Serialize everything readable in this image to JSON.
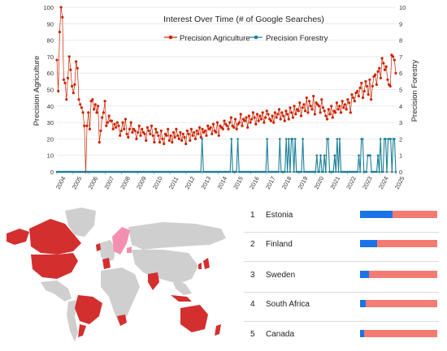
{
  "chart_data": {
    "type": "line",
    "title": "Interest Over Time (# of Google Searches)",
    "xlabel": "",
    "ylabel_left": "Precision Agriculture",
    "ylabel_right": "Precision Forestry",
    "xlim": [
      2004,
      2025
    ],
    "ylim_left": [
      0,
      100
    ],
    "ylim_right": [
      0,
      10
    ],
    "x_ticks": [
      "2004",
      "2005",
      "2006",
      "2007",
      "2008",
      "2009",
      "2010",
      "2011",
      "2012",
      "2013",
      "2014",
      "2015",
      "2016",
      "2017",
      "2018",
      "2019",
      "2020",
      "2021",
      "2022",
      "2023",
      "2024",
      "2025"
    ],
    "y_ticks_left": [
      "0",
      "10",
      "20",
      "30",
      "40",
      "50",
      "60",
      "70",
      "80",
      "90",
      "100"
    ],
    "y_ticks_right": [
      "0",
      "1",
      "2",
      "3",
      "4",
      "5",
      "6",
      "7",
      "8",
      "9",
      "10"
    ],
    "legend_position": "top-center",
    "grid": "horizontal",
    "series": [
      {
        "name": "Precision Agriculture",
        "axis": "left",
        "color": "#cc2200",
        "values": [
          68,
          49,
          85,
          100,
          94,
          56,
          54,
          44,
          57,
          70,
          62,
          52,
          48,
          53,
          67,
          63,
          44,
          41,
          39,
          36,
          28,
          0,
          28,
          36,
          26,
          43,
          44,
          38,
          41,
          36,
          40,
          18,
          25,
          33,
          36,
          43,
          28,
          30,
          34,
          31,
          31,
          26,
          29,
          27,
          30,
          28,
          22,
          25,
          30,
          26,
          32,
          23,
          21,
          26,
          30,
          24,
          26,
          25,
          20,
          24,
          28,
          22,
          26,
          24,
          23,
          19,
          27,
          25,
          23,
          28,
          22,
          18,
          26,
          24,
          22,
          18,
          25,
          20,
          17,
          23,
          22,
          26,
          19,
          22,
          18,
          24,
          21,
          26,
          22,
          20,
          24,
          19,
          23,
          21,
          17,
          25,
          23,
          19,
          26,
          22,
          24,
          20,
          25,
          23,
          27,
          21,
          26,
          24,
          25,
          22,
          28,
          26,
          27,
          23,
          29,
          25,
          24,
          30,
          22,
          28,
          27,
          26,
          31,
          29,
          28,
          26,
          30,
          33,
          28,
          27,
          32,
          26,
          29,
          30,
          35,
          28,
          32,
          31,
          33,
          27,
          34,
          30,
          32,
          36,
          33,
          29,
          35,
          31,
          34,
          32,
          36,
          30,
          33,
          37,
          35,
          32,
          31,
          34,
          30,
          36,
          33,
          35,
          38,
          32,
          36,
          34,
          31,
          37,
          35,
          32,
          39,
          36,
          33,
          40,
          35,
          38,
          37,
          42,
          34,
          39,
          41,
          37,
          45,
          36,
          43,
          40,
          38,
          46,
          35,
          42,
          41,
          40,
          36,
          44,
          39,
          37,
          34,
          32,
          38,
          35,
          40,
          33,
          37,
          36,
          42,
          38,
          40,
          36,
          43,
          39,
          41,
          38,
          44,
          42,
          36,
          47,
          45,
          43,
          48,
          49,
          46,
          51,
          54,
          45,
          49,
          55,
          52,
          47,
          56,
          44,
          52,
          58,
          59,
          53,
          61,
          63,
          57,
          69,
          66,
          62,
          64,
          56,
          53,
          52,
          71,
          70,
          68,
          60
        ]
      },
      {
        "name": "Precision Forestry",
        "axis": "right",
        "color": "#1b7f96",
        "values": [
          0,
          0,
          0,
          0,
          0,
          0,
          0,
          0,
          0,
          0,
          0,
          0,
          0,
          0,
          0,
          0,
          0,
          0,
          0,
          0,
          0,
          0,
          0,
          0,
          0,
          0,
          0,
          0,
          0,
          0,
          0,
          0,
          0,
          0,
          0,
          0,
          0,
          0,
          0,
          0,
          0,
          0,
          0,
          0,
          0,
          0,
          0,
          0,
          0,
          0,
          0,
          0,
          0,
          0,
          0,
          0,
          0,
          0,
          0,
          0,
          0,
          0,
          0,
          0,
          0,
          0,
          0,
          0,
          0,
          0,
          0,
          0,
          0,
          0,
          0,
          0,
          0,
          0,
          0,
          0,
          0,
          0,
          0,
          0,
          0,
          0,
          0,
          0,
          0,
          0,
          0,
          0,
          0,
          0,
          0,
          0,
          0,
          0,
          0,
          0,
          0,
          0,
          0,
          0,
          0,
          0,
          0,
          0,
          0,
          0,
          0,
          0,
          0,
          0,
          2,
          0,
          0,
          0,
          0,
          0,
          0,
          0,
          0,
          0,
          0,
          0,
          0,
          0,
          0,
          0,
          0,
          0,
          0,
          0,
          0,
          0,
          0,
          2,
          0,
          0,
          0,
          0,
          2,
          0,
          0,
          0,
          0,
          0,
          0,
          0,
          0,
          0,
          0,
          0,
          0,
          0,
          0,
          0,
          0,
          0,
          0,
          0,
          0,
          0,
          0,
          2,
          0,
          0,
          0,
          0,
          0,
          0,
          0,
          0,
          0,
          2,
          0,
          0,
          0,
          0,
          2,
          0,
          2,
          0,
          2,
          2,
          0,
          2,
          0,
          0,
          0,
          0,
          0,
          2,
          0,
          0,
          0,
          0,
          0,
          0,
          0,
          0,
          0,
          0,
          1,
          0,
          0,
          1,
          0,
          0,
          1,
          0,
          2,
          2,
          0,
          0,
          0,
          0,
          1,
          0,
          2,
          0,
          2,
          0,
          0,
          0,
          0,
          0,
          0,
          0,
          0,
          0,
          0,
          0,
          0,
          0,
          0,
          1,
          0,
          2,
          2,
          0,
          0,
          0,
          1,
          1,
          1,
          0,
          0,
          0,
          0,
          0,
          1,
          0,
          2,
          0,
          0,
          2,
          2,
          0,
          2,
          2,
          2,
          0,
          2,
          2,
          0
        ]
      }
    ]
  },
  "ranking": {
    "legend_colors": {
      "forestry": "#1a73e8",
      "agriculture": "#f47b72"
    },
    "items": [
      {
        "rank": "1",
        "country": "Estonia",
        "forestry_share": 0.42
      },
      {
        "rank": "2",
        "country": "Finland",
        "forestry_share": 0.22
      },
      {
        "rank": "3",
        "country": "Sweden",
        "forestry_share": 0.12
      },
      {
        "rank": "4",
        "country": "South Africa",
        "forestry_share": 0.07
      },
      {
        "rank": "5",
        "country": "Canada",
        "forestry_share": 0.05
      }
    ]
  },
  "map": {
    "colors": {
      "agriculture_dominant": "#d32f2f",
      "forestry_dominant": "#f48fb1",
      "no_data": "#cfcfcf"
    }
  }
}
